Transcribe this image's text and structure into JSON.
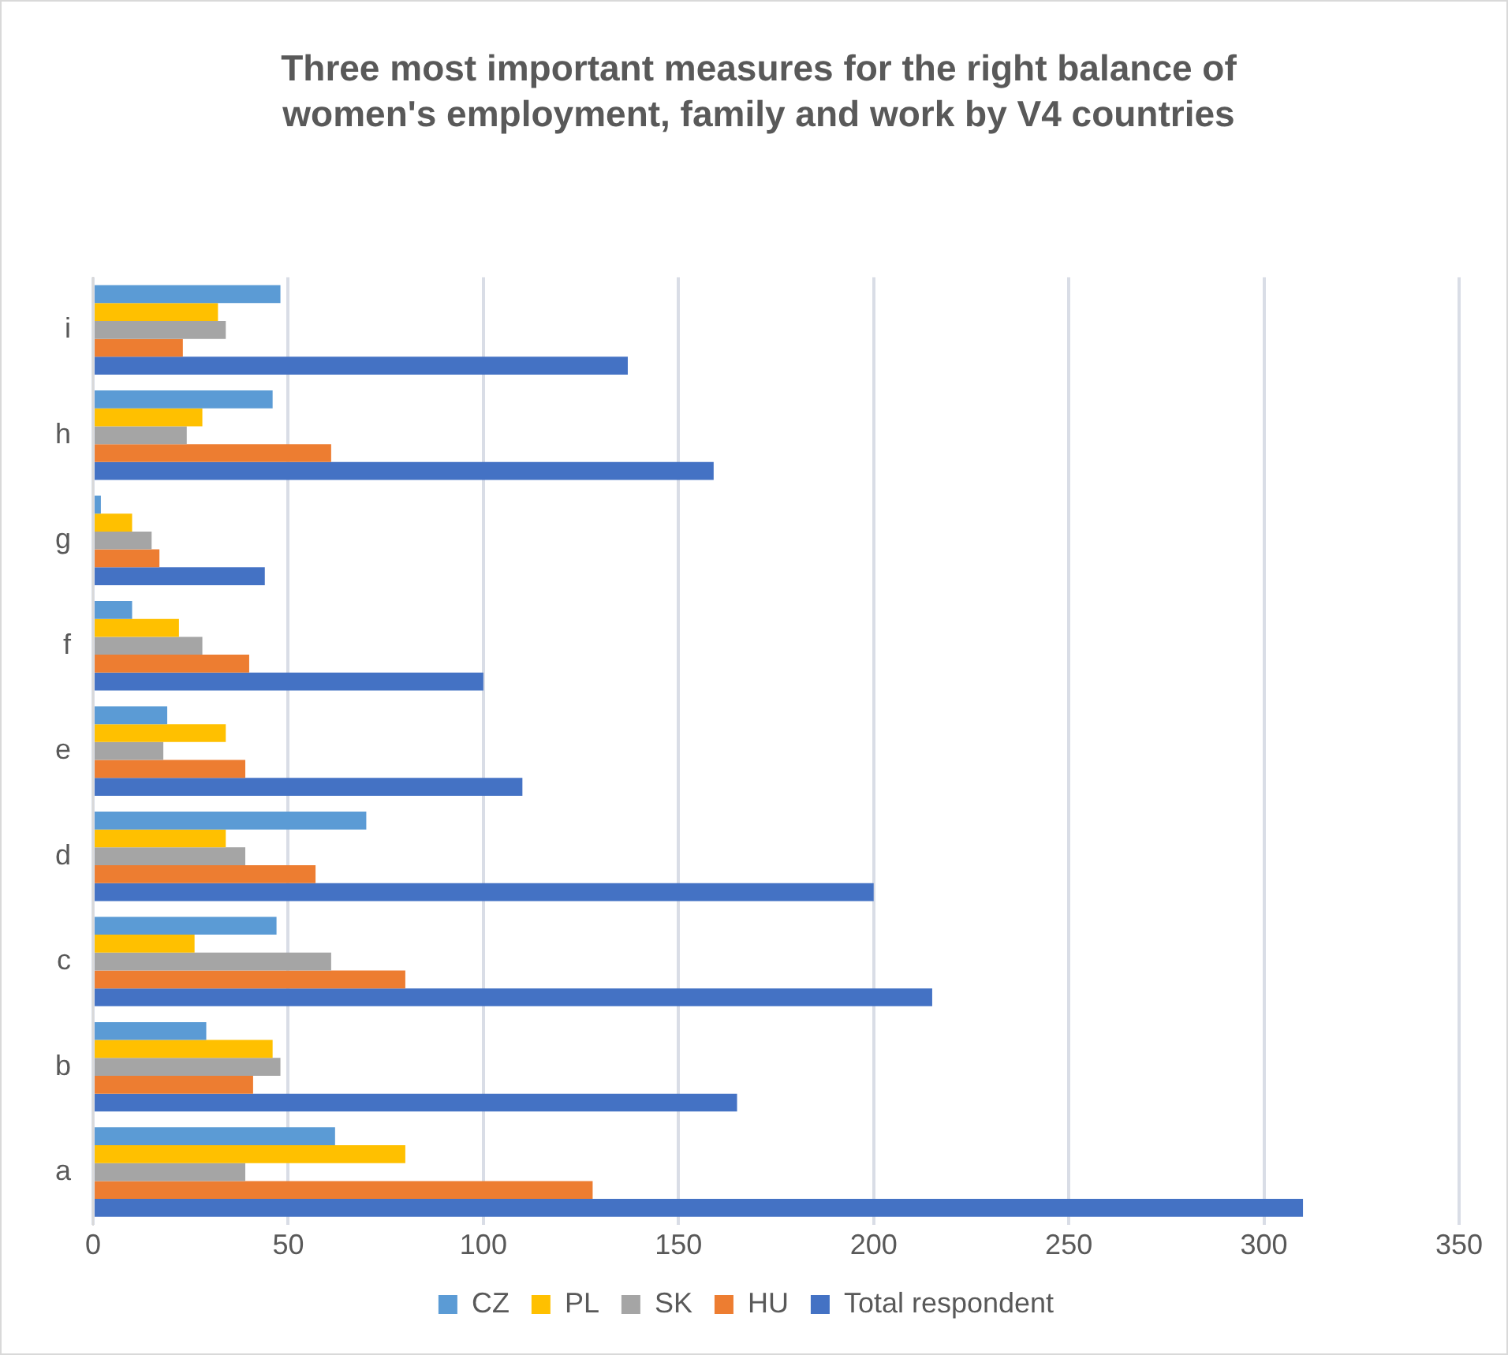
{
  "chart_data": {
    "type": "bar",
    "orientation": "horizontal",
    "title": "Three most important measures for the right balance of women's employment, family and work by V4  countries",
    "categories": [
      "i",
      "h",
      "g",
      "f",
      "e",
      "d",
      "c",
      "b",
      "a"
    ],
    "series": [
      {
        "name": "CZ",
        "color": "#5b9bd5",
        "values": [
          48,
          46,
          2,
          10,
          19,
          70,
          47,
          29,
          62
        ]
      },
      {
        "name": "PL",
        "color": "#ffc000",
        "values": [
          32,
          28,
          10,
          22,
          34,
          34,
          26,
          46,
          80
        ]
      },
      {
        "name": "SK",
        "color": "#a5a5a5",
        "values": [
          34,
          24,
          15,
          28,
          18,
          39,
          61,
          48,
          39
        ]
      },
      {
        "name": "HU",
        "color": "#ed7d31",
        "values": [
          23,
          61,
          17,
          40,
          39,
          57,
          80,
          41,
          128
        ]
      },
      {
        "name": "Total respondent",
        "color": "#4472c4",
        "values": [
          137,
          159,
          44,
          100,
          110,
          200,
          215,
          165,
          310
        ]
      }
    ],
    "xlim": [
      0,
      350
    ],
    "xticks": [
      0,
      50,
      100,
      150,
      200,
      250,
      300,
      350
    ],
    "grid": "x",
    "legend": "bottom"
  }
}
